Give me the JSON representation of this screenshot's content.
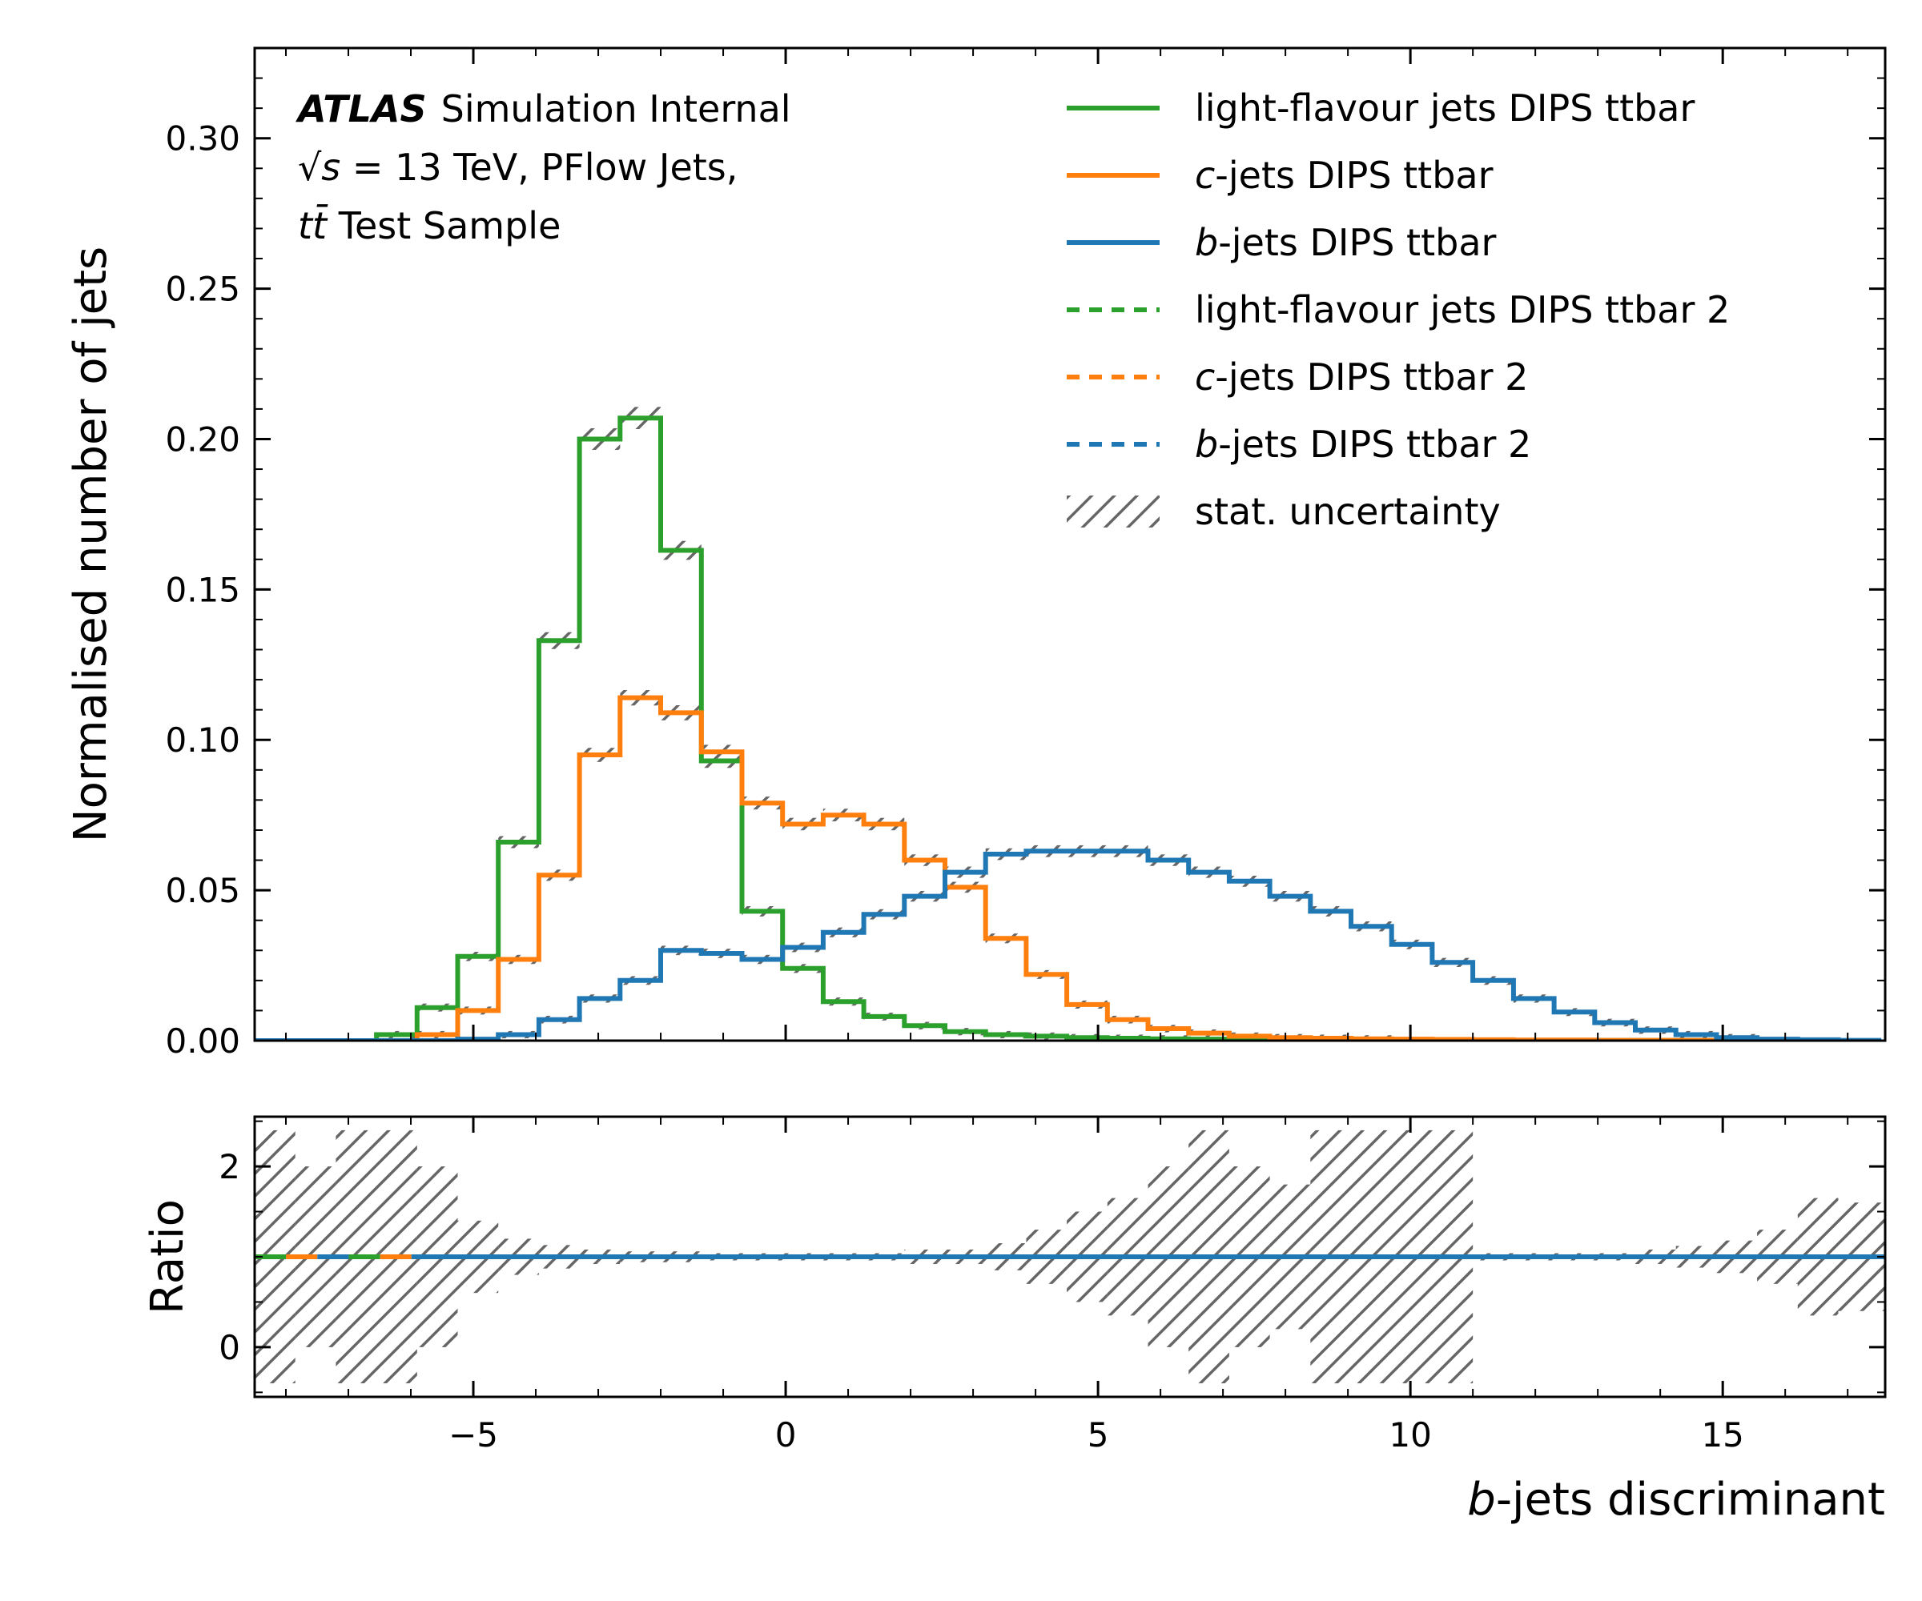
{
  "chart_data": [
    {
      "type": "line",
      "drawstyle": "steps",
      "panel": "main",
      "ylabel": "Normalised number of jets",
      "ylim": [
        0,
        0.33
      ],
      "xlim": [
        -8.5,
        17.6
      ],
      "grid": false,
      "legend_position": "top-right",
      "yticks": [
        "0.00",
        "0.05",
        "0.10",
        "0.15",
        "0.20",
        "0.25",
        "0.30"
      ],
      "atlas_label": {
        "experiment": "ATLAS",
        "status": "Simulation Internal",
        "line2_sqrt": "√s",
        "line2_rest": " = 13 TeV, PFlow Jets,",
        "line3_tt": "tt̄",
        "line3_rest": " Test Sample"
      },
      "bin_edges": [
        -8.5,
        -7.85,
        -7.2,
        -6.55,
        -5.9,
        -5.25,
        -4.6,
        -3.95,
        -3.3,
        -2.65,
        -2.0,
        -1.35,
        -0.7,
        -0.05,
        0.6,
        1.25,
        1.9,
        2.55,
        3.2,
        3.85,
        4.5,
        5.15,
        5.8,
        6.45,
        7.1,
        7.75,
        8.4,
        9.05,
        9.7,
        10.35,
        11.0,
        11.65,
        12.3,
        12.95,
        13.6,
        14.25,
        14.9,
        15.55,
        16.2,
        16.85,
        17.5
      ],
      "series": [
        {
          "name_prefix": "light-flavour jets",
          "name_italic": "",
          "name_suffix": " DIPS ttbar",
          "color": "#2ca02c",
          "linestyle": "solid",
          "values": [
            0,
            0,
            0,
            0.002,
            0.011,
            0.028,
            0.066,
            0.133,
            0.2,
            0.207,
            0.163,
            0.093,
            0.043,
            0.024,
            0.013,
            0.008,
            0.005,
            0.003,
            0.002,
            0.0015,
            0.001,
            0.0008,
            0.0006,
            0.0005,
            0.0004,
            0.0003,
            0.0003,
            0.0002,
            0.0002,
            0.0001,
            0.0001,
            0.0001,
            0.0001,
            0.0001,
            0.0001,
            0.0001,
            0,
            0,
            0,
            0
          ]
        },
        {
          "name_prefix": "",
          "name_italic": "c",
          "name_suffix": "-jets DIPS ttbar",
          "color": "#ff7f0e",
          "linestyle": "solid",
          "values": [
            0,
            0,
            0,
            0,
            0.002,
            0.01,
            0.027,
            0.055,
            0.095,
            0.114,
            0.109,
            0.096,
            0.079,
            0.072,
            0.075,
            0.072,
            0.06,
            0.051,
            0.034,
            0.022,
            0.012,
            0.007,
            0.004,
            0.0025,
            0.0015,
            0.001,
            0.0008,
            0.0006,
            0.0005,
            0.0004,
            0.0003,
            0.0002,
            0.0002,
            0.0001,
            0.0001,
            0.0001,
            0.0001,
            0,
            0,
            0
          ]
        },
        {
          "name_prefix": "",
          "name_italic": "b",
          "name_suffix": "-jets DIPS ttbar",
          "color": "#1f77b4",
          "linestyle": "solid",
          "values": [
            0,
            0,
            0,
            0,
            0,
            0.0005,
            0.002,
            0.007,
            0.014,
            0.02,
            0.03,
            0.029,
            0.027,
            0.031,
            0.036,
            0.042,
            0.048,
            0.056,
            0.062,
            0.063,
            0.063,
            0.063,
            0.06,
            0.056,
            0.053,
            0.048,
            0.043,
            0.038,
            0.032,
            0.026,
            0.02,
            0.014,
            0.0095,
            0.006,
            0.0035,
            0.002,
            0.001,
            0.0005,
            0.0003,
            0.0001
          ]
        },
        {
          "name_prefix": "light-flavour jets",
          "name_italic": "",
          "name_suffix": " DIPS ttbar 2",
          "color": "#2ca02c",
          "linestyle": "dashed"
        },
        {
          "name_prefix": "",
          "name_italic": "c",
          "name_suffix": "-jets DIPS ttbar 2",
          "color": "#ff7f0e",
          "linestyle": "dashed"
        },
        {
          "name_prefix": "",
          "name_italic": "b",
          "name_suffix": "-jets DIPS ttbar 2",
          "color": "#1f77b4",
          "linestyle": "dashed"
        }
      ],
      "uncertainty_label": "stat. uncertainty",
      "uncertainty_color": "#666666"
    },
    {
      "type": "line",
      "drawstyle": "steps",
      "panel": "ratio",
      "ylabel": "Ratio",
      "xlabel_italic": "b",
      "xlabel_rest": "-jets discriminant",
      "xlim": [
        -8.5,
        17.6
      ],
      "ylim": [
        -0.55,
        2.55
      ],
      "yticks": [
        "0",
        "2"
      ],
      "xticks": [
        "−5",
        "0",
        "5",
        "10",
        "15"
      ],
      "xtick_values": [
        -5,
        0,
        5,
        10,
        15
      ],
      "ratio_value": 1.0,
      "uncertainty_band": [
        {
          "x0": -8.5,
          "x1": -7.85,
          "lo": -0.4,
          "hi": 2.4
        },
        {
          "x0": -7.85,
          "x1": -7.2,
          "lo": 0.0,
          "hi": 2.0
        },
        {
          "x0": -7.2,
          "x1": -5.9,
          "lo": -0.4,
          "hi": 2.4
        },
        {
          "x0": -5.9,
          "x1": -5.25,
          "lo": 0.0,
          "hi": 2.0
        },
        {
          "x0": -5.25,
          "x1": -4.6,
          "lo": 0.6,
          "hi": 1.4
        },
        {
          "x0": -4.6,
          "x1": -3.95,
          "lo": 0.8,
          "hi": 1.2
        },
        {
          "x0": -3.95,
          "x1": -3.3,
          "lo": 0.87,
          "hi": 1.13
        },
        {
          "x0": -3.3,
          "x1": -2.65,
          "lo": 0.92,
          "hi": 1.08
        },
        {
          "x0": -2.65,
          "x1": -1.35,
          "lo": 0.94,
          "hi": 1.06
        },
        {
          "x0": -1.35,
          "x1": 1.9,
          "lo": 0.96,
          "hi": 1.04
        },
        {
          "x0": 1.9,
          "x1": 3.2,
          "lo": 0.92,
          "hi": 1.08
        },
        {
          "x0": 3.2,
          "x1": 3.85,
          "lo": 0.85,
          "hi": 1.15
        },
        {
          "x0": 3.85,
          "x1": 4.5,
          "lo": 0.7,
          "hi": 1.3
        },
        {
          "x0": 4.5,
          "x1": 5.15,
          "lo": 0.5,
          "hi": 1.5
        },
        {
          "x0": 5.15,
          "x1": 5.8,
          "lo": 0.35,
          "hi": 1.65
        },
        {
          "x0": 5.8,
          "x1": 6.45,
          "lo": 0.0,
          "hi": 2.0
        },
        {
          "x0": 6.45,
          "x1": 7.1,
          "lo": -0.4,
          "hi": 2.4
        },
        {
          "x0": 7.1,
          "x1": 7.75,
          "lo": 0.0,
          "hi": 2.0
        },
        {
          "x0": 7.75,
          "x1": 8.4,
          "lo": 0.2,
          "hi": 1.8
        },
        {
          "x0": 8.4,
          "x1": 11.0,
          "lo": -0.4,
          "hi": 2.4
        },
        {
          "x0": 11.0,
          "x1": 13.6,
          "lo": 0.96,
          "hi": 1.04
        },
        {
          "x0": 13.6,
          "x1": 14.25,
          "lo": 0.92,
          "hi": 1.08
        },
        {
          "x0": 14.25,
          "x1": 14.9,
          "lo": 0.88,
          "hi": 1.12
        },
        {
          "x0": 14.9,
          "x1": 15.55,
          "lo": 0.82,
          "hi": 1.18
        },
        {
          "x0": 15.55,
          "x1": 16.2,
          "lo": 0.7,
          "hi": 1.3
        },
        {
          "x0": 16.2,
          "x1": 16.85,
          "lo": 0.35,
          "hi": 1.65
        },
        {
          "x0": 16.85,
          "x1": 17.6,
          "lo": 0.4,
          "hi": 1.6
        }
      ]
    }
  ]
}
